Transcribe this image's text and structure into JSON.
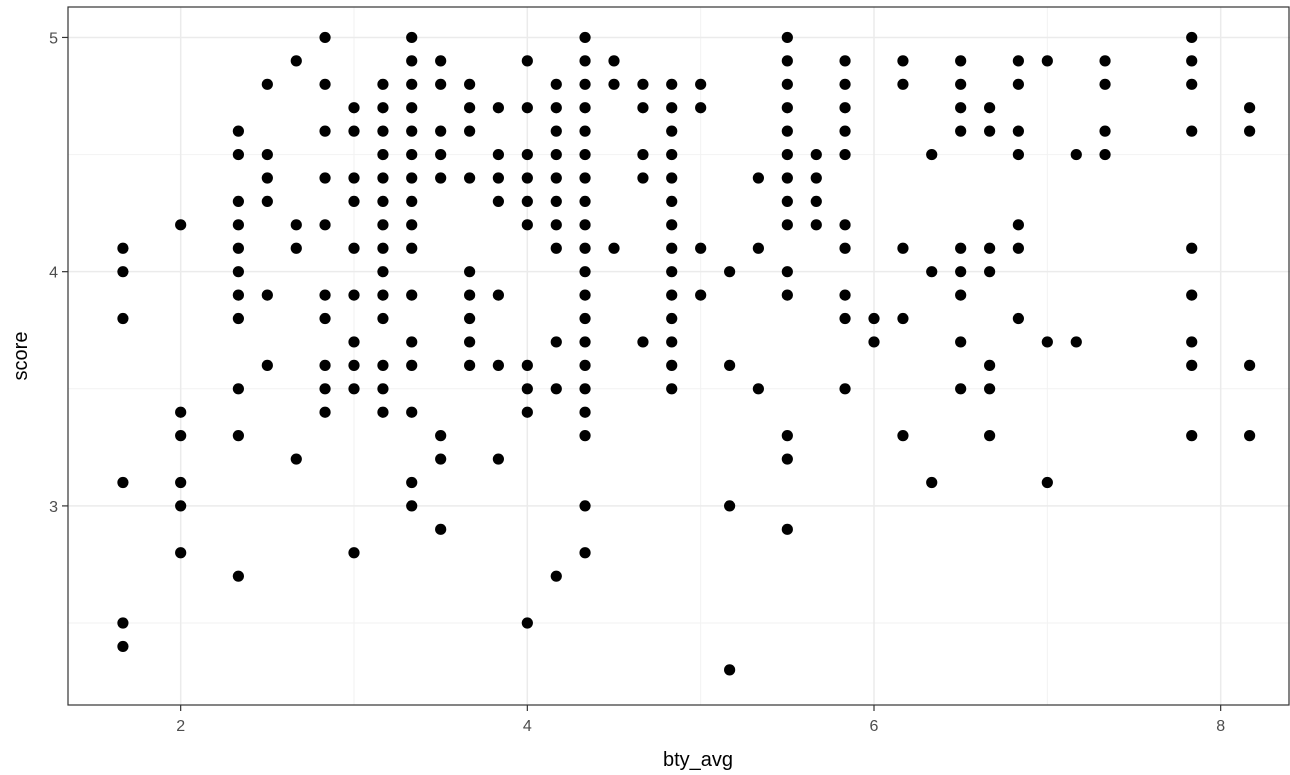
{
  "chart_data": {
    "type": "scatter",
    "title": "",
    "xlabel": "bty_avg",
    "ylabel": "score",
    "xlim": [
      1.35,
      8.4
    ],
    "ylim": [
      2.15,
      5.13
    ],
    "xticks": [
      2,
      4,
      6,
      8
    ],
    "yticks": [
      3,
      4,
      5
    ],
    "x_tick_labels": [
      "2",
      "4",
      "6",
      "8"
    ],
    "y_tick_labels": [
      "3",
      "4",
      "5"
    ],
    "x_minor": [
      3,
      5,
      7
    ],
    "y_minor": [
      2.5,
      3.5,
      4.5
    ],
    "grid": true,
    "point_color": "#000000",
    "points": [
      {
        "x": 1.667,
        "y": 4.1
      },
      {
        "x": 1.667,
        "y": 4.0
      },
      {
        "x": 1.667,
        "y": 3.8
      },
      {
        "x": 1.667,
        "y": 3.1
      },
      {
        "x": 1.667,
        "y": 2.5
      },
      {
        "x": 1.667,
        "y": 2.4
      },
      {
        "x": 2.0,
        "y": 4.2
      },
      {
        "x": 2.0,
        "y": 3.4
      },
      {
        "x": 2.0,
        "y": 3.3
      },
      {
        "x": 2.0,
        "y": 3.1
      },
      {
        "x": 2.0,
        "y": 3.0
      },
      {
        "x": 2.0,
        "y": 2.8
      },
      {
        "x": 2.333,
        "y": 4.6
      },
      {
        "x": 2.333,
        "y": 4.5
      },
      {
        "x": 2.333,
        "y": 4.3
      },
      {
        "x": 2.333,
        "y": 4.2
      },
      {
        "x": 2.333,
        "y": 4.1
      },
      {
        "x": 2.333,
        "y": 4.0
      },
      {
        "x": 2.333,
        "y": 3.9
      },
      {
        "x": 2.333,
        "y": 3.8
      },
      {
        "x": 2.333,
        "y": 3.5
      },
      {
        "x": 2.333,
        "y": 3.3
      },
      {
        "x": 2.333,
        "y": 2.7
      },
      {
        "x": 2.5,
        "y": 4.8
      },
      {
        "x": 2.5,
        "y": 4.5
      },
      {
        "x": 2.5,
        "y": 4.4
      },
      {
        "x": 2.5,
        "y": 4.3
      },
      {
        "x": 2.5,
        "y": 3.9
      },
      {
        "x": 2.5,
        "y": 3.6
      },
      {
        "x": 2.667,
        "y": 4.9
      },
      {
        "x": 2.667,
        "y": 4.2
      },
      {
        "x": 2.667,
        "y": 4.1
      },
      {
        "x": 2.667,
        "y": 3.2
      },
      {
        "x": 2.833,
        "y": 5.0
      },
      {
        "x": 2.833,
        "y": 4.8
      },
      {
        "x": 2.833,
        "y": 4.6
      },
      {
        "x": 2.833,
        "y": 4.4
      },
      {
        "x": 2.833,
        "y": 4.2
      },
      {
        "x": 2.833,
        "y": 3.9
      },
      {
        "x": 2.833,
        "y": 3.8
      },
      {
        "x": 2.833,
        "y": 3.6
      },
      {
        "x": 2.833,
        "y": 3.5
      },
      {
        "x": 2.833,
        "y": 3.4
      },
      {
        "x": 3.0,
        "y": 4.7
      },
      {
        "x": 3.0,
        "y": 4.6
      },
      {
        "x": 3.0,
        "y": 4.4
      },
      {
        "x": 3.0,
        "y": 4.3
      },
      {
        "x": 3.0,
        "y": 4.1
      },
      {
        "x": 3.0,
        "y": 3.9
      },
      {
        "x": 3.0,
        "y": 3.7
      },
      {
        "x": 3.0,
        "y": 3.6
      },
      {
        "x": 3.0,
        "y": 3.5
      },
      {
        "x": 3.0,
        "y": 2.8
      },
      {
        "x": 3.167,
        "y": 4.8
      },
      {
        "x": 3.167,
        "y": 4.7
      },
      {
        "x": 3.167,
        "y": 4.6
      },
      {
        "x": 3.167,
        "y": 4.5
      },
      {
        "x": 3.167,
        "y": 4.4
      },
      {
        "x": 3.167,
        "y": 4.3
      },
      {
        "x": 3.167,
        "y": 4.2
      },
      {
        "x": 3.167,
        "y": 4.1
      },
      {
        "x": 3.167,
        "y": 4.0
      },
      {
        "x": 3.167,
        "y": 3.9
      },
      {
        "x": 3.167,
        "y": 3.8
      },
      {
        "x": 3.167,
        "y": 3.6
      },
      {
        "x": 3.167,
        "y": 3.5
      },
      {
        "x": 3.167,
        "y": 3.4
      },
      {
        "x": 3.333,
        "y": 5.0
      },
      {
        "x": 3.333,
        "y": 4.9
      },
      {
        "x": 3.333,
        "y": 4.8
      },
      {
        "x": 3.333,
        "y": 4.7
      },
      {
        "x": 3.333,
        "y": 4.6
      },
      {
        "x": 3.333,
        "y": 4.5
      },
      {
        "x": 3.333,
        "y": 4.4
      },
      {
        "x": 3.333,
        "y": 4.3
      },
      {
        "x": 3.333,
        "y": 4.2
      },
      {
        "x": 3.333,
        "y": 4.1
      },
      {
        "x": 3.333,
        "y": 3.9
      },
      {
        "x": 3.333,
        "y": 3.7
      },
      {
        "x": 3.333,
        "y": 3.6
      },
      {
        "x": 3.333,
        "y": 3.4
      },
      {
        "x": 3.333,
        "y": 3.1
      },
      {
        "x": 3.333,
        "y": 3.0
      },
      {
        "x": 3.5,
        "y": 4.9
      },
      {
        "x": 3.5,
        "y": 4.8
      },
      {
        "x": 3.5,
        "y": 4.6
      },
      {
        "x": 3.5,
        "y": 4.5
      },
      {
        "x": 3.5,
        "y": 4.4
      },
      {
        "x": 3.5,
        "y": 3.3
      },
      {
        "x": 3.5,
        "y": 3.2
      },
      {
        "x": 3.5,
        "y": 2.9
      },
      {
        "x": 3.667,
        "y": 4.8
      },
      {
        "x": 3.667,
        "y": 4.7
      },
      {
        "x": 3.667,
        "y": 4.6
      },
      {
        "x": 3.667,
        "y": 4.4
      },
      {
        "x": 3.667,
        "y": 4.0
      },
      {
        "x": 3.667,
        "y": 3.9
      },
      {
        "x": 3.667,
        "y": 3.8
      },
      {
        "x": 3.667,
        "y": 3.7
      },
      {
        "x": 3.667,
        "y": 3.6
      },
      {
        "x": 3.833,
        "y": 4.7
      },
      {
        "x": 3.833,
        "y": 4.5
      },
      {
        "x": 3.833,
        "y": 4.4
      },
      {
        "x": 3.833,
        "y": 4.3
      },
      {
        "x": 3.833,
        "y": 3.9
      },
      {
        "x": 3.833,
        "y": 3.6
      },
      {
        "x": 3.833,
        "y": 3.2
      },
      {
        "x": 4.0,
        "y": 4.9
      },
      {
        "x": 4.0,
        "y": 4.7
      },
      {
        "x": 4.0,
        "y": 4.5
      },
      {
        "x": 4.0,
        "y": 4.4
      },
      {
        "x": 4.0,
        "y": 4.3
      },
      {
        "x": 4.0,
        "y": 4.2
      },
      {
        "x": 4.0,
        "y": 3.6
      },
      {
        "x": 4.0,
        "y": 3.5
      },
      {
        "x": 4.0,
        "y": 3.4
      },
      {
        "x": 4.0,
        "y": 2.5
      },
      {
        "x": 4.167,
        "y": 4.8
      },
      {
        "x": 4.167,
        "y": 4.7
      },
      {
        "x": 4.167,
        "y": 4.6
      },
      {
        "x": 4.167,
        "y": 4.5
      },
      {
        "x": 4.167,
        "y": 4.4
      },
      {
        "x": 4.167,
        "y": 4.3
      },
      {
        "x": 4.167,
        "y": 4.2
      },
      {
        "x": 4.167,
        "y": 4.1
      },
      {
        "x": 4.167,
        "y": 3.7
      },
      {
        "x": 4.167,
        "y": 3.5
      },
      {
        "x": 4.167,
        "y": 2.7
      },
      {
        "x": 4.333,
        "y": 5.0
      },
      {
        "x": 4.333,
        "y": 4.9
      },
      {
        "x": 4.333,
        "y": 4.8
      },
      {
        "x": 4.333,
        "y": 4.7
      },
      {
        "x": 4.333,
        "y": 4.6
      },
      {
        "x": 4.333,
        "y": 4.5
      },
      {
        "x": 4.333,
        "y": 4.4
      },
      {
        "x": 4.333,
        "y": 4.3
      },
      {
        "x": 4.333,
        "y": 4.2
      },
      {
        "x": 4.333,
        "y": 4.1
      },
      {
        "x": 4.333,
        "y": 4.0
      },
      {
        "x": 4.333,
        "y": 3.9
      },
      {
        "x": 4.333,
        "y": 3.8
      },
      {
        "x": 4.333,
        "y": 3.7
      },
      {
        "x": 4.333,
        "y": 3.6
      },
      {
        "x": 4.333,
        "y": 3.5
      },
      {
        "x": 4.333,
        "y": 3.4
      },
      {
        "x": 4.333,
        "y": 3.3
      },
      {
        "x": 4.333,
        "y": 3.0
      },
      {
        "x": 4.333,
        "y": 2.8
      },
      {
        "x": 4.5,
        "y": 4.9
      },
      {
        "x": 4.5,
        "y": 4.8
      },
      {
        "x": 4.5,
        "y": 4.1
      },
      {
        "x": 4.667,
        "y": 4.8
      },
      {
        "x": 4.667,
        "y": 4.7
      },
      {
        "x": 4.667,
        "y": 4.5
      },
      {
        "x": 4.667,
        "y": 4.4
      },
      {
        "x": 4.667,
        "y": 3.7
      },
      {
        "x": 4.833,
        "y": 4.8
      },
      {
        "x": 4.833,
        "y": 4.7
      },
      {
        "x": 4.833,
        "y": 4.6
      },
      {
        "x": 4.833,
        "y": 4.5
      },
      {
        "x": 4.833,
        "y": 4.4
      },
      {
        "x": 4.833,
        "y": 4.3
      },
      {
        "x": 4.833,
        "y": 4.2
      },
      {
        "x": 4.833,
        "y": 4.1
      },
      {
        "x": 4.833,
        "y": 4.0
      },
      {
        "x": 4.833,
        "y": 3.9
      },
      {
        "x": 4.833,
        "y": 3.8
      },
      {
        "x": 4.833,
        "y": 3.7
      },
      {
        "x": 4.833,
        "y": 3.6
      },
      {
        "x": 4.833,
        "y": 3.5
      },
      {
        "x": 5.0,
        "y": 4.8
      },
      {
        "x": 5.0,
        "y": 4.7
      },
      {
        "x": 5.0,
        "y": 4.1
      },
      {
        "x": 5.0,
        "y": 3.9
      },
      {
        "x": 5.167,
        "y": 4.0
      },
      {
        "x": 5.167,
        "y": 3.6
      },
      {
        "x": 5.167,
        "y": 3.0
      },
      {
        "x": 5.167,
        "y": 2.3
      },
      {
        "x": 5.333,
        "y": 4.4
      },
      {
        "x": 5.333,
        "y": 4.1
      },
      {
        "x": 5.333,
        "y": 3.5
      },
      {
        "x": 5.5,
        "y": 5.0
      },
      {
        "x": 5.5,
        "y": 4.9
      },
      {
        "x": 5.5,
        "y": 4.8
      },
      {
        "x": 5.5,
        "y": 4.7
      },
      {
        "x": 5.5,
        "y": 4.6
      },
      {
        "x": 5.5,
        "y": 4.5
      },
      {
        "x": 5.5,
        "y": 4.4
      },
      {
        "x": 5.5,
        "y": 4.3
      },
      {
        "x": 5.5,
        "y": 4.2
      },
      {
        "x": 5.5,
        "y": 4.0
      },
      {
        "x": 5.5,
        "y": 3.9
      },
      {
        "x": 5.5,
        "y": 3.3
      },
      {
        "x": 5.5,
        "y": 3.2
      },
      {
        "x": 5.5,
        "y": 2.9
      },
      {
        "x": 5.667,
        "y": 4.5
      },
      {
        "x": 5.667,
        "y": 4.4
      },
      {
        "x": 5.667,
        "y": 4.3
      },
      {
        "x": 5.667,
        "y": 4.2
      },
      {
        "x": 5.833,
        "y": 4.9
      },
      {
        "x": 5.833,
        "y": 4.8
      },
      {
        "x": 5.833,
        "y": 4.7
      },
      {
        "x": 5.833,
        "y": 4.6
      },
      {
        "x": 5.833,
        "y": 4.5
      },
      {
        "x": 5.833,
        "y": 4.2
      },
      {
        "x": 5.833,
        "y": 4.1
      },
      {
        "x": 5.833,
        "y": 3.9
      },
      {
        "x": 5.833,
        "y": 3.8
      },
      {
        "x": 5.833,
        "y": 3.5
      },
      {
        "x": 6.0,
        "y": 3.8
      },
      {
        "x": 6.0,
        "y": 3.7
      },
      {
        "x": 6.167,
        "y": 4.9
      },
      {
        "x": 6.167,
        "y": 4.8
      },
      {
        "x": 6.167,
        "y": 4.1
      },
      {
        "x": 6.167,
        "y": 3.8
      },
      {
        "x": 6.167,
        "y": 3.3
      },
      {
        "x": 6.333,
        "y": 4.5
      },
      {
        "x": 6.333,
        "y": 4.0
      },
      {
        "x": 6.333,
        "y": 3.1
      },
      {
        "x": 6.5,
        "y": 4.9
      },
      {
        "x": 6.5,
        "y": 4.8
      },
      {
        "x": 6.5,
        "y": 4.7
      },
      {
        "x": 6.5,
        "y": 4.6
      },
      {
        "x": 6.5,
        "y": 4.1
      },
      {
        "x": 6.5,
        "y": 4.0
      },
      {
        "x": 6.5,
        "y": 3.9
      },
      {
        "x": 6.5,
        "y": 3.7
      },
      {
        "x": 6.5,
        "y": 3.5
      },
      {
        "x": 6.667,
        "y": 4.7
      },
      {
        "x": 6.667,
        "y": 4.6
      },
      {
        "x": 6.667,
        "y": 4.1
      },
      {
        "x": 6.667,
        "y": 4.0
      },
      {
        "x": 6.667,
        "y": 3.6
      },
      {
        "x": 6.667,
        "y": 3.5
      },
      {
        "x": 6.667,
        "y": 3.3
      },
      {
        "x": 6.833,
        "y": 4.9
      },
      {
        "x": 6.833,
        "y": 4.8
      },
      {
        "x": 6.833,
        "y": 4.6
      },
      {
        "x": 6.833,
        "y": 4.5
      },
      {
        "x": 6.833,
        "y": 4.2
      },
      {
        "x": 6.833,
        "y": 4.1
      },
      {
        "x": 6.833,
        "y": 3.8
      },
      {
        "x": 7.0,
        "y": 4.9
      },
      {
        "x": 7.0,
        "y": 3.7
      },
      {
        "x": 7.0,
        "y": 3.1
      },
      {
        "x": 7.167,
        "y": 4.5
      },
      {
        "x": 7.167,
        "y": 3.7
      },
      {
        "x": 7.333,
        "y": 4.9
      },
      {
        "x": 7.333,
        "y": 4.8
      },
      {
        "x": 7.333,
        "y": 4.6
      },
      {
        "x": 7.333,
        "y": 4.5
      },
      {
        "x": 7.833,
        "y": 5.0
      },
      {
        "x": 7.833,
        "y": 4.9
      },
      {
        "x": 7.833,
        "y": 4.8
      },
      {
        "x": 7.833,
        "y": 4.6
      },
      {
        "x": 7.833,
        "y": 4.1
      },
      {
        "x": 7.833,
        "y": 3.9
      },
      {
        "x": 7.833,
        "y": 3.7
      },
      {
        "x": 7.833,
        "y": 3.6
      },
      {
        "x": 7.833,
        "y": 3.3
      },
      {
        "x": 8.167,
        "y": 4.7
      },
      {
        "x": 8.167,
        "y": 4.6
      },
      {
        "x": 8.167,
        "y": 3.6
      },
      {
        "x": 8.167,
        "y": 3.3
      }
    ]
  }
}
